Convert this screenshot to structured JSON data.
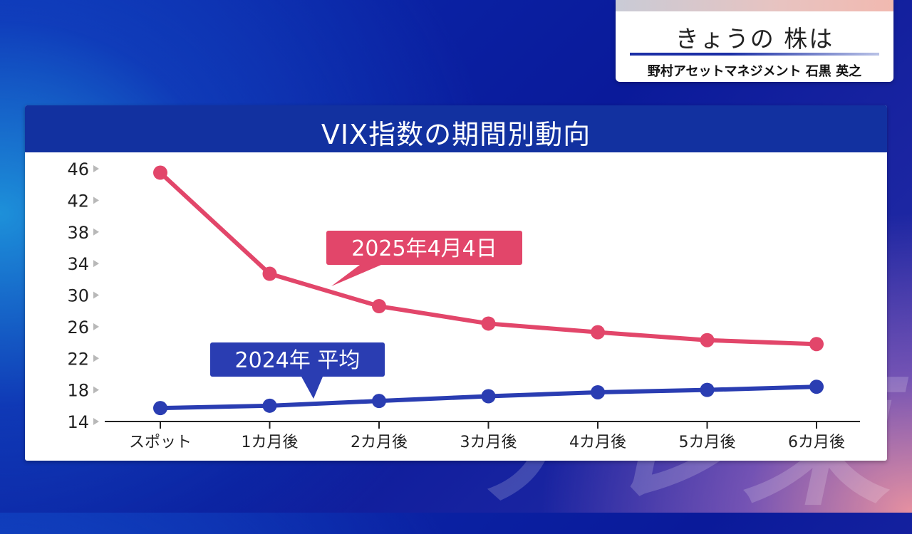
{
  "header": {
    "program_title": "きょうの 株は",
    "guest": "野村アセットマネジメント 石黒 英之"
  },
  "background": {
    "decorative_text": "テレ東"
  },
  "colors": {
    "series_2025": "#e2466a",
    "series_2024": "#2a3db2",
    "panel_header": "#1231a0"
  },
  "chart_data": {
    "type": "line",
    "title": "VIX指数の期間別動向",
    "xlabel": "",
    "ylabel": "",
    "categories": [
      "スポット",
      "1カ月後",
      "2カ月後",
      "3カ月後",
      "4カ月後",
      "5カ月後",
      "6カ月後"
    ],
    "y_ticks": [
      "46",
      "42",
      "38",
      "34",
      "30",
      "26",
      "22",
      "18",
      "14"
    ],
    "ylim": [
      14,
      46
    ],
    "grid": false,
    "series": [
      {
        "name": "2025年4月4日",
        "color": "#e2466a",
        "values": [
          45.5,
          32.7,
          28.6,
          26.4,
          25.3,
          24.3,
          23.8
        ]
      },
      {
        "name": "2024年 平均",
        "color": "#2a3db2",
        "values": [
          15.7,
          16.0,
          16.6,
          17.2,
          17.7,
          18.0,
          18.4
        ]
      }
    ]
  }
}
